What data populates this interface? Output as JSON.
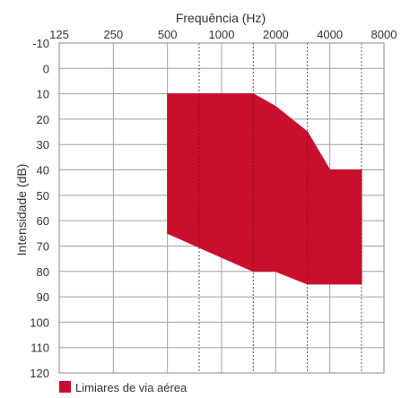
{
  "chart_data": {
    "type": "area",
    "title": "",
    "xlabel": "Frequência (Hz)",
    "ylabel": "Intensidade (dB)",
    "x_scale": "log2",
    "x_axis_position": "top",
    "y_inverted": true,
    "x_ticks": [
      {
        "value": 125,
        "label": "125"
      },
      {
        "value": 250,
        "label": "250"
      },
      {
        "value": 500,
        "label": "500"
      },
      {
        "value": 1000,
        "label": "1000"
      },
      {
        "value": 2000,
        "label": "2000"
      },
      {
        "value": 4000,
        "label": "4000"
      },
      {
        "value": 8000,
        "label": "8000"
      }
    ],
    "x_minor_ticks": [
      750,
      1500,
      3000,
      6000
    ],
    "xlim": [
      125,
      8000
    ],
    "y_ticks": [
      -10,
      0,
      10,
      20,
      30,
      40,
      50,
      60,
      70,
      80,
      90,
      100,
      110,
      120
    ],
    "ylim": [
      -10,
      120
    ],
    "grid": true,
    "legend_position": "bottom-left",
    "series": [
      {
        "name": "Limiares de via aérea",
        "color": "#c8102e",
        "upper": [
          {
            "x": 500,
            "y": 10
          },
          {
            "x": 1500,
            "y": 10
          },
          {
            "x": 2000,
            "y": 15
          },
          {
            "x": 3000,
            "y": 25
          },
          {
            "x": 4000,
            "y": 40
          },
          {
            "x": 6000,
            "y": 40
          }
        ],
        "lower": [
          {
            "x": 500,
            "y": 65
          },
          {
            "x": 1500,
            "y": 80
          },
          {
            "x": 2000,
            "y": 80
          },
          {
            "x": 3000,
            "y": 85
          },
          {
            "x": 4000,
            "y": 85
          },
          {
            "x": 6000,
            "y": 85
          }
        ]
      }
    ]
  }
}
